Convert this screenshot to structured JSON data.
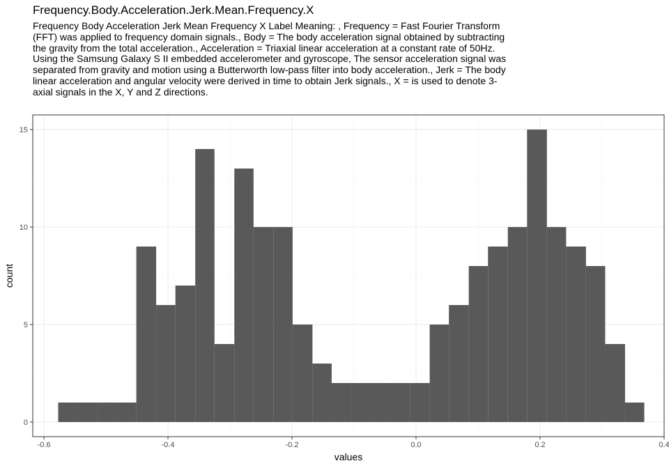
{
  "chart_data": {
    "type": "bar",
    "title": "Frequency.Body.Acceleration.Jerk.Mean.Frequency.X",
    "subtitle": "Frequency Body Acceleration Jerk Mean Frequency X Label Meaning: , Frequency = Fast Fourier Transform (FFT) was applied to frequency domain signals., Body = The body acceleration signal obtained by subtracting the gravity from the total acceleration., Acceleration = Triaxial linear acceleration at a constant rate of 50Hz. Using the Samsung Galaxy S II embedded accelerometer and gyroscope, The sensor acceleration signal was separated from gravity and motion using a Butterworth low-pass filter into body acceleration., Jerk = The body linear acceleration and angular velocity were derived in time to obtain Jerk signals., X = is used to denote 3-axial signals in the X, Y and Z directions.",
    "xlabel": "values",
    "ylabel": "count",
    "xlim": [
      -0.618,
      0.4
    ],
    "ylim": [
      -0.75,
      15.75
    ],
    "x_ticks": [
      -0.6,
      -0.4,
      -0.2,
      0.0,
      0.2,
      0.4
    ],
    "x_tick_labels": [
      "-0.6",
      "-0.4",
      "-0.2",
      "0.0",
      "0.2",
      "0.4"
    ],
    "y_ticks": [
      0,
      5,
      10,
      15
    ],
    "y_tick_labels": [
      "0",
      "5",
      "10",
      "15"
    ],
    "grid": true,
    "bar_color": "#595959",
    "bins": [
      {
        "x0": -0.577,
        "x1": -0.545,
        "count": 1
      },
      {
        "x0": -0.545,
        "x1": -0.514,
        "count": 1
      },
      {
        "x0": -0.514,
        "x1": -0.482,
        "count": 1
      },
      {
        "x0": -0.482,
        "x1": -0.451,
        "count": 1
      },
      {
        "x0": -0.451,
        "x1": -0.419,
        "count": 9
      },
      {
        "x0": -0.419,
        "x1": -0.388,
        "count": 6
      },
      {
        "x0": -0.388,
        "x1": -0.356,
        "count": 7
      },
      {
        "x0": -0.356,
        "x1": -0.325,
        "count": 14
      },
      {
        "x0": -0.325,
        "x1": -0.293,
        "count": 4
      },
      {
        "x0": -0.293,
        "x1": -0.262,
        "count": 13
      },
      {
        "x0": -0.262,
        "x1": -0.23,
        "count": 10
      },
      {
        "x0": -0.23,
        "x1": -0.199,
        "count": 10
      },
      {
        "x0": -0.199,
        "x1": -0.167,
        "count": 5
      },
      {
        "x0": -0.167,
        "x1": -0.136,
        "count": 3
      },
      {
        "x0": -0.136,
        "x1": -0.104,
        "count": 2
      },
      {
        "x0": -0.104,
        "x1": -0.073,
        "count": 2
      },
      {
        "x0": -0.073,
        "x1": -0.041,
        "count": 2
      },
      {
        "x0": -0.041,
        "x1": -0.01,
        "count": 2
      },
      {
        "x0": -0.01,
        "x1": 0.022,
        "count": 2
      },
      {
        "x0": 0.022,
        "x1": 0.053,
        "count": 5
      },
      {
        "x0": 0.053,
        "x1": 0.085,
        "count": 6
      },
      {
        "x0": 0.085,
        "x1": 0.116,
        "count": 8
      },
      {
        "x0": 0.116,
        "x1": 0.148,
        "count": 9
      },
      {
        "x0": 0.148,
        "x1": 0.179,
        "count": 10
      },
      {
        "x0": 0.179,
        "x1": 0.211,
        "count": 15
      },
      {
        "x0": 0.211,
        "x1": 0.242,
        "count": 10
      },
      {
        "x0": 0.242,
        "x1": 0.274,
        "count": 9
      },
      {
        "x0": 0.274,
        "x1": 0.305,
        "count": 8
      },
      {
        "x0": 0.305,
        "x1": 0.337,
        "count": 4
      },
      {
        "x0": 0.337,
        "x1": 0.368,
        "count": 1
      }
    ]
  }
}
